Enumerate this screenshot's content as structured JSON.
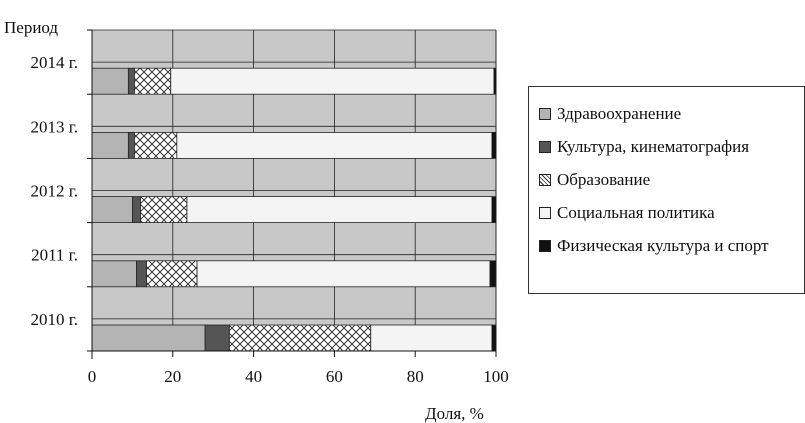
{
  "chart_data": {
    "type": "bar",
    "orientation": "horizontal",
    "stacked": true,
    "ylabel": "Период",
    "xlabel": "Доля, %",
    "xlim": [
      0,
      100
    ],
    "xticks": [
      "0",
      "20",
      "40",
      "60",
      "80",
      "100"
    ],
    "categories": [
      "2014 г.",
      "2013 г.",
      "2012 г.",
      "2011 г.",
      "2010 г."
    ],
    "series": [
      {
        "name": "Здравоохранение",
        "color": "#b4b4b4",
        "pattern": "solid",
        "values": [
          9,
          9,
          10,
          11,
          28
        ]
      },
      {
        "name": "Культура, кинематография",
        "color": "#555555",
        "pattern": "solid",
        "values": [
          1.5,
          1.5,
          2,
          2.5,
          6
        ]
      },
      {
        "name": "Образование",
        "color": "#ffffff",
        "pattern": "crosshatch",
        "values": [
          9,
          10.5,
          11.5,
          12.5,
          35
        ]
      },
      {
        "name": "Социальная политика",
        "color": "#f4f4f4",
        "pattern": "solid",
        "values": [
          80,
          78,
          75.5,
          72.5,
          30
        ]
      },
      {
        "name": "Физическая культура и спорт",
        "color": "#111111",
        "pattern": "solid",
        "values": [
          0.5,
          1,
          1,
          1.5,
          1
        ]
      }
    ],
    "grid": true,
    "legend": "right"
  }
}
